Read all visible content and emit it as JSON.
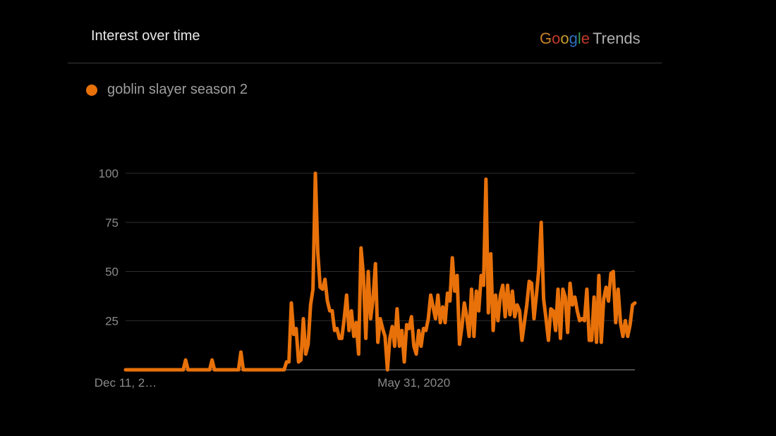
{
  "header": {
    "title": "Interest over time"
  },
  "brand": {
    "google": [
      "G",
      "o",
      "o",
      "g",
      "l",
      "e"
    ],
    "trends": "Trends"
  },
  "legend": {
    "series_name": "goblin slayer season 2",
    "color": "#e8710a"
  },
  "chart_data": {
    "type": "line",
    "title": "Interest over time",
    "series": [
      {
        "name": "goblin slayer season 2",
        "color": "#e8710a",
        "values": [
          0,
          0,
          0,
          0,
          0,
          0,
          0,
          0,
          0,
          0,
          0,
          0,
          0,
          0,
          0,
          0,
          0,
          0,
          0,
          0,
          0,
          0,
          0,
          0,
          0,
          5,
          0,
          0,
          0,
          0,
          0,
          0,
          0,
          0,
          0,
          0,
          5,
          0,
          0,
          0,
          0,
          0,
          0,
          0,
          0,
          0,
          0,
          0,
          9,
          0,
          0,
          0,
          0,
          0,
          0,
          0,
          0,
          0,
          0,
          0,
          0,
          0,
          0,
          0,
          0,
          0,
          0,
          4,
          4,
          34,
          18,
          21,
          4,
          5,
          26,
          8,
          13,
          33,
          41,
          100,
          60,
          42,
          41,
          46,
          35,
          30,
          30,
          20,
          21,
          16,
          16,
          26,
          38,
          20,
          30,
          17,
          24,
          8,
          62,
          48,
          16,
          50,
          26,
          36,
          54,
          14,
          26,
          21,
          17,
          0,
          16,
          22,
          12,
          31,
          12,
          20,
          4,
          23,
          21,
          27,
          12,
          8,
          20,
          12,
          21,
          20,
          26,
          38,
          32,
          26,
          38,
          24,
          32,
          24,
          39,
          35,
          57,
          40,
          48,
          13,
          22,
          34,
          27,
          17,
          41,
          17,
          40,
          30,
          48,
          43,
          97,
          29,
          59,
          20,
          38,
          25,
          38,
          43,
          27,
          43,
          28,
          40,
          27,
          33,
          30,
          15,
          24,
          33,
          45,
          44,
          26,
          38,
          51,
          75,
          36,
          26,
          15,
          31,
          30,
          20,
          41,
          16,
          41,
          37,
          19,
          44,
          33,
          37,
          30,
          25,
          26,
          25,
          41,
          15,
          15,
          37,
          14,
          48,
          14,
          36,
          42,
          35,
          49,
          50,
          24,
          41,
          24,
          17,
          25,
          17,
          23,
          33,
          34
        ]
      }
    ],
    "x_ticks": [
      "Dec 11, 2…",
      "May 31, 2020"
    ],
    "x_tick_index": [
      0,
      120
    ],
    "y_ticks": [
      25,
      50,
      75,
      100
    ],
    "ylim": [
      0,
      100
    ],
    "grid": true,
    "legend_position": "top-left",
    "xlabel": "",
    "ylabel": ""
  },
  "colors": {
    "background": "#000000",
    "gridline": "#2e2e2e",
    "axis": "#666666",
    "tick_label": "#8a8a8a"
  }
}
